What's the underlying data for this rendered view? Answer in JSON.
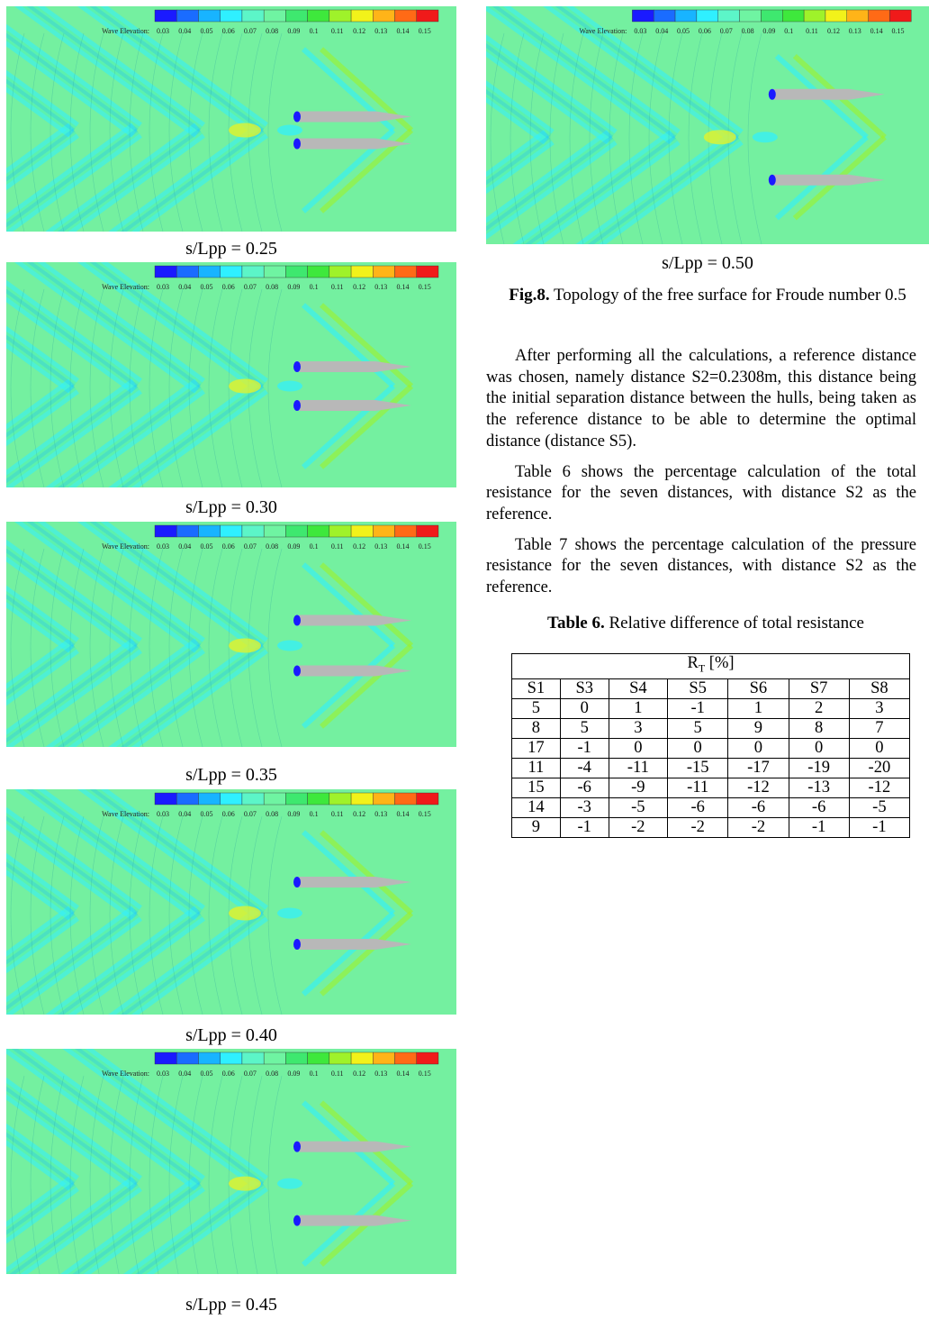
{
  "legend": {
    "title": "Wave Elevation:",
    "ticks": [
      "0.03",
      "0.04",
      "0.05",
      "0.06",
      "0.07",
      "0.08",
      "0.09",
      "0.1",
      "0.11",
      "0.12",
      "0.13",
      "0.14",
      "0.15"
    ],
    "colors": [
      "#1a1aff",
      "#1a6cff",
      "#18b4ff",
      "#2ff0ff",
      "#5cf5c8",
      "#6ff4a2",
      "#3ee86f",
      "#3ee83c",
      "#9ff22a",
      "#f2f21a",
      "#ffb418",
      "#ff6a16",
      "#f01a1a"
    ]
  },
  "colors": {
    "sea": "#74f0a0",
    "hull": "#b8b8b8"
  },
  "panels": [
    {
      "id": "p025",
      "caption": "s/Lpp = 0.25",
      "separation": 0.25
    },
    {
      "id": "p030",
      "caption": "s/Lpp = 0.30",
      "separation": 0.3
    },
    {
      "id": "p035",
      "caption": "s/Lpp = 0.35",
      "separation": 0.35
    },
    {
      "id": "p040",
      "caption": "s/Lpp = 0.40",
      "separation": 0.4
    },
    {
      "id": "p045",
      "caption": "s/Lpp = 0.45",
      "separation": 0.45
    },
    {
      "id": "p050",
      "caption": "s/Lpp = 0.50",
      "separation": 0.5
    }
  ],
  "figure": {
    "label": "Fig.8.",
    "text": "Topology of the free surface for Froude number 0.5"
  },
  "paragraphs": [
    "After performing all the calculations, a reference distance was chosen, namely distance S2=0.2308m, this distance being the initial separation distance between the hulls, being taken as the reference distance to be able to determine the optimal distance (distance S5).",
    "Table 6 shows the percentage calculation of the total resistance for the seven distances, with distance S2 as the reference.",
    "Table 7 shows the percentage calculation of the pressure resistance for the seven distances, with distance S2 as the reference."
  ],
  "table": {
    "label": "Table 6.",
    "caption": "Relative difference of total resistance",
    "header_main": "R",
    "header_sub": "T",
    "header_unit": " [%]",
    "columns": [
      "S1",
      "S3",
      "S4",
      "S5",
      "S6",
      "S7",
      "S8"
    ],
    "rows": [
      [
        "5",
        "0",
        "1",
        "-1",
        "1",
        "2",
        "3"
      ],
      [
        "8",
        "5",
        "3",
        "5",
        "9",
        "8",
        "7"
      ],
      [
        "17",
        "-1",
        "0",
        "0",
        "0",
        "0",
        "0"
      ],
      [
        "11",
        "-4",
        "-11",
        "-15",
        "-17",
        "-19",
        "-20"
      ],
      [
        "15",
        "-6",
        "-9",
        "-11",
        "-12",
        "-13",
        "-12"
      ],
      [
        "14",
        "-3",
        "-5",
        "-6",
        "-6",
        "-6",
        "-5"
      ],
      [
        "9",
        "-1",
        "-2",
        "-2",
        "-2",
        "-1",
        "-1"
      ]
    ]
  }
}
